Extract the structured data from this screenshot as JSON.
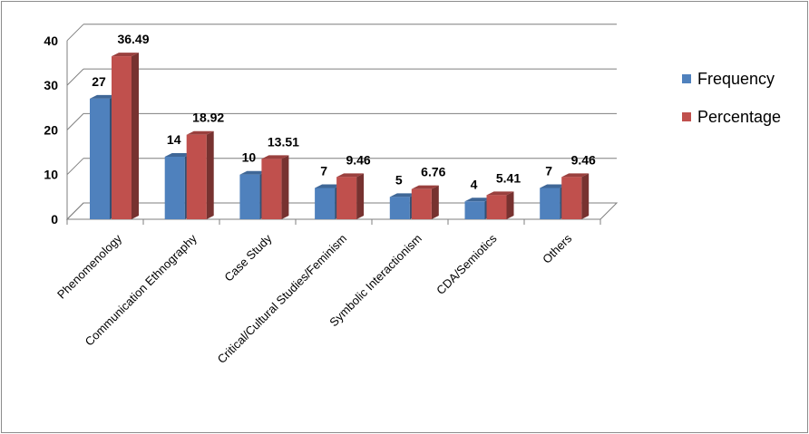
{
  "chart_data": {
    "type": "bar",
    "categories": [
      "Phenomenology",
      "Communication Ethnography",
      "Case Study",
      "Critical/Cultural Studies/Feminism",
      "Symbolic Interactionism",
      "CDA/Semiotics",
      "Others"
    ],
    "series": [
      {
        "name": "Frequency",
        "values": [
          27,
          14,
          10,
          7,
          5,
          4,
          7
        ],
        "labels": [
          "27",
          "14",
          "10",
          "7",
          "5",
          "4",
          "7"
        ],
        "color": "#4f81bd"
      },
      {
        "name": "Percentage",
        "values": [
          36.49,
          18.92,
          13.51,
          9.46,
          6.76,
          5.41,
          9.46
        ],
        "labels": [
          "36.49",
          "18.92",
          "13.51",
          "9.46",
          "6.76",
          "5.41",
          "9.46"
        ],
        "color": "#c0504d"
      }
    ],
    "yticks": [
      "0",
      "10",
      "20",
      "30",
      "40"
    ],
    "ylim": [
      0,
      40
    ],
    "grid": true,
    "legend_position": "right",
    "style": "3d-clustered-column"
  }
}
